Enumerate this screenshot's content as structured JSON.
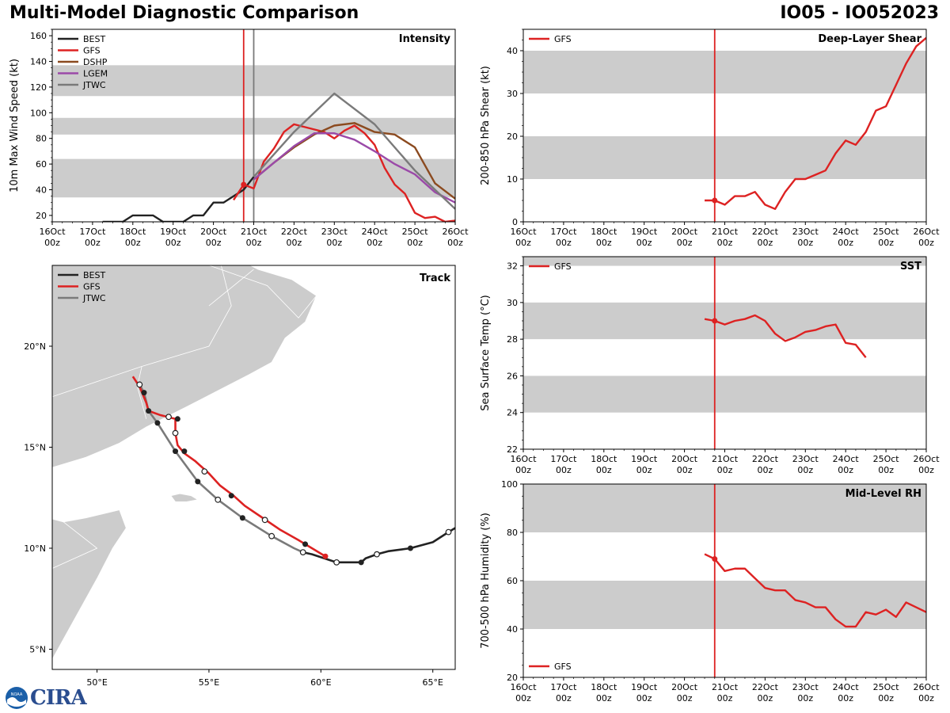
{
  "header": {
    "title": "Multi-Model Diagnostic Comparison",
    "storm_id": "IO05 - IO052023"
  },
  "logo": {
    "text": "CIRA",
    "mark_label": "NOAA"
  },
  "colors": {
    "BEST": "#222222",
    "GFS": "#dd2222",
    "DSHP": "#8b4a1f",
    "LGEM": "#9b4aa8",
    "JTWC": "#7a7a7a",
    "band": "#cccccc",
    "land": "#cccccc"
  },
  "time_axis": {
    "ticks": [
      {
        "day": 0,
        "label": "16Oct"
      },
      {
        "day": 1,
        "label": "17Oct"
      },
      {
        "day": 2,
        "label": "18Oct"
      },
      {
        "day": 3,
        "label": "19Oct"
      },
      {
        "day": 4,
        "label": "20Oct"
      },
      {
        "day": 5,
        "label": "21Oct"
      },
      {
        "day": 6,
        "label": "22Oct"
      },
      {
        "day": 7,
        "label": "23Oct"
      },
      {
        "day": 8,
        "label": "24Oct"
      },
      {
        "day": 9,
        "label": "25Oct"
      },
      {
        "day": 10,
        "label": "26Oct"
      }
    ],
    "sub_label": "00z",
    "range": [
      0,
      10
    ],
    "current_day": 4.75
  },
  "chart_data": [
    {
      "id": "intensity",
      "type": "line",
      "title": "Intensity",
      "ylabel": "10m Max Wind Speed (kt)",
      "ylim": [
        15,
        165
      ],
      "yticks": [
        20,
        40,
        60,
        80,
        100,
        120,
        140,
        160
      ],
      "bands": [
        [
          34,
          64
        ],
        [
          83,
          96
        ],
        [
          113,
          137
        ]
      ],
      "jtwc_init_day": 5.0,
      "legend": [
        "BEST",
        "GFS",
        "DSHP",
        "LGEM",
        "JTWC"
      ],
      "series": [
        {
          "name": "BEST",
          "points": [
            [
              1.25,
              15
            ],
            [
              1.5,
              15
            ],
            [
              1.75,
              15
            ],
            [
              2.0,
              20
            ],
            [
              2.25,
              20
            ],
            [
              2.5,
              20
            ],
            [
              2.75,
              15
            ],
            [
              3.0,
              15
            ],
            [
              3.25,
              15
            ],
            [
              3.5,
              20
            ],
            [
              3.75,
              20
            ],
            [
              4.0,
              30
            ],
            [
              4.25,
              30
            ],
            [
              4.5,
              35
            ],
            [
              4.75,
              40
            ],
            [
              5.0,
              50
            ]
          ]
        },
        {
          "name": "GFS",
          "points": [
            [
              4.5,
              32
            ],
            [
              4.75,
              44
            ],
            [
              5.0,
              41
            ],
            [
              5.25,
              62
            ],
            [
              5.5,
              72
            ],
            [
              5.75,
              85
            ],
            [
              6.0,
              91
            ],
            [
              6.25,
              89
            ],
            [
              6.5,
              87
            ],
            [
              6.75,
              85
            ],
            [
              7.0,
              80
            ],
            [
              7.25,
              86
            ],
            [
              7.5,
              90
            ],
            [
              7.75,
              84
            ],
            [
              8.0,
              75
            ],
            [
              8.25,
              57
            ],
            [
              8.5,
              44
            ],
            [
              8.75,
              37
            ],
            [
              9.0,
              22
            ],
            [
              9.25,
              18
            ],
            [
              9.5,
              19
            ],
            [
              9.75,
              15
            ],
            [
              10.0,
              16
            ]
          ]
        },
        {
          "name": "DSHP",
          "points": [
            [
              5.0,
              48
            ],
            [
              5.5,
              61
            ],
            [
              6.0,
              73
            ],
            [
              6.5,
              83
            ],
            [
              7.0,
              90
            ],
            [
              7.5,
              92
            ],
            [
              8.0,
              85
            ],
            [
              8.5,
              83
            ],
            [
              9.0,
              73
            ],
            [
              9.5,
              45
            ],
            [
              10.0,
              33
            ]
          ]
        },
        {
          "name": "LGEM",
          "points": [
            [
              5.0,
              48
            ],
            [
              5.5,
              61
            ],
            [
              6.0,
              74
            ],
            [
              6.5,
              84
            ],
            [
              7.0,
              84
            ],
            [
              7.5,
              79
            ],
            [
              8.0,
              70
            ],
            [
              8.5,
              60
            ],
            [
              9.0,
              52
            ],
            [
              9.5,
              38
            ],
            [
              10.0,
              30
            ]
          ]
        },
        {
          "name": "JTWC",
          "points": [
            [
              5.0,
              50
            ],
            [
              6.0,
              85
            ],
            [
              7.0,
              115
            ],
            [
              8.0,
              91
            ],
            [
              9.0,
              55
            ],
            [
              10.0,
              25
            ]
          ]
        }
      ]
    },
    {
      "id": "shear",
      "type": "line",
      "title": "Deep-Layer Shear",
      "ylabel": "200-850 hPa Shear (kt)",
      "ylim": [
        0,
        45
      ],
      "yticks": [
        0,
        10,
        20,
        30,
        40
      ],
      "bands": [
        [
          10,
          20
        ],
        [
          30,
          40
        ]
      ],
      "legend": [
        "GFS"
      ],
      "series": [
        {
          "name": "GFS",
          "points": [
            [
              4.5,
              5
            ],
            [
              4.75,
              5
            ],
            [
              5.0,
              4
            ],
            [
              5.25,
              6
            ],
            [
              5.5,
              6
            ],
            [
              5.75,
              7
            ],
            [
              6.0,
              4
            ],
            [
              6.25,
              3
            ],
            [
              6.5,
              7
            ],
            [
              6.75,
              10
            ],
            [
              7.0,
              10
            ],
            [
              7.25,
              11
            ],
            [
              7.5,
              12
            ],
            [
              7.75,
              16
            ],
            [
              8.0,
              19
            ],
            [
              8.25,
              18
            ],
            [
              8.5,
              21
            ],
            [
              8.75,
              26
            ],
            [
              9.0,
              27
            ],
            [
              9.25,
              32
            ],
            [
              9.5,
              37
            ],
            [
              9.75,
              41
            ],
            [
              10.0,
              43
            ]
          ]
        }
      ]
    },
    {
      "id": "sst",
      "type": "line",
      "title": "SST",
      "ylabel": "Sea Surface Temp (°C)",
      "ylim": [
        22,
        32.5
      ],
      "yticks": [
        22,
        24,
        26,
        28,
        30,
        32
      ],
      "bands": [
        [
          24,
          26
        ],
        [
          28,
          30
        ],
        [
          32,
          34
        ]
      ],
      "legend": [
        "GFS"
      ],
      "series": [
        {
          "name": "GFS",
          "points": [
            [
              4.5,
              29.1
            ],
            [
              4.75,
              29.0
            ],
            [
              5.0,
              28.8
            ],
            [
              5.25,
              29.0
            ],
            [
              5.5,
              29.1
            ],
            [
              5.75,
              29.3
            ],
            [
              6.0,
              29.0
            ],
            [
              6.25,
              28.3
            ],
            [
              6.5,
              27.9
            ],
            [
              6.75,
              28.1
            ],
            [
              7.0,
              28.4
            ],
            [
              7.25,
              28.5
            ],
            [
              7.5,
              28.7
            ],
            [
              7.75,
              28.8
            ],
            [
              8.0,
              27.8
            ],
            [
              8.25,
              27.7
            ],
            [
              8.5,
              27.0
            ]
          ]
        }
      ]
    },
    {
      "id": "rh",
      "type": "line",
      "title": "Mid-Level RH",
      "ylabel": "700-500 hPa Humidity (%)",
      "ylim": [
        20,
        100
      ],
      "yticks": [
        20,
        40,
        60,
        80,
        100
      ],
      "bands": [
        [
          40,
          60
        ],
        [
          80,
          100
        ]
      ],
      "legend": [
        "GFS"
      ],
      "series": [
        {
          "name": "GFS",
          "points": [
            [
              4.5,
              71
            ],
            [
              4.75,
              69
            ],
            [
              5.0,
              64
            ],
            [
              5.25,
              65
            ],
            [
              5.5,
              65
            ],
            [
              5.75,
              61
            ],
            [
              6.0,
              57
            ],
            [
              6.25,
              56
            ],
            [
              6.5,
              56
            ],
            [
              6.75,
              52
            ],
            [
              7.0,
              51
            ],
            [
              7.25,
              49
            ],
            [
              7.5,
              49
            ],
            [
              7.75,
              44
            ],
            [
              8.0,
              41
            ],
            [
              8.25,
              41
            ],
            [
              8.5,
              47
            ],
            [
              8.75,
              46
            ],
            [
              9.0,
              48
            ],
            [
              9.25,
              45
            ],
            [
              9.5,
              51
            ],
            [
              9.75,
              49
            ],
            [
              10.0,
              47
            ]
          ]
        }
      ]
    },
    {
      "id": "track",
      "type": "map-track",
      "title": "Track",
      "lon_range": [
        48.0,
        66.0
      ],
      "lat_range": [
        4.0,
        24.0
      ],
      "lon_ticks": [
        {
          "v": 50,
          "label": "50°E"
        },
        {
          "v": 55,
          "label": "55°E"
        },
        {
          "v": 60,
          "label": "60°E"
        },
        {
          "v": 65,
          "label": "65°E"
        }
      ],
      "lat_ticks": [
        {
          "v": 5,
          "label": "5°N"
        },
        {
          "v": 10,
          "label": "10°N"
        },
        {
          "v": 15,
          "label": "15°N"
        },
        {
          "v": 20,
          "label": "20°N"
        }
      ],
      "legend": [
        "BEST",
        "GFS",
        "JTWC"
      ],
      "series": [
        {
          "name": "BEST",
          "points": [
            [
              66.0,
              11.0
            ],
            [
              65.7,
              10.8
            ],
            [
              65.0,
              10.3
            ],
            [
              64.0,
              10.0
            ],
            [
              63.0,
              9.85
            ],
            [
              62.5,
              9.7
            ],
            [
              62.0,
              9.5
            ],
            [
              61.8,
              9.3
            ],
            [
              61.3,
              9.3
            ],
            [
              60.7,
              9.3
            ],
            [
              59.6,
              9.7
            ],
            [
              59.2,
              9.8
            ]
          ],
          "open_pts": [
            [
              65.7,
              10.8
            ],
            [
              62.5,
              9.7
            ],
            [
              60.7,
              9.3
            ]
          ],
          "filled_pts": [
            [
              64.0,
              10.0
            ],
            [
              61.8,
              9.3
            ]
          ]
        },
        {
          "name": "GFS",
          "points": [
            [
              51.6,
              18.5
            ],
            [
              51.9,
              18.0
            ],
            [
              52.2,
              17.2
            ],
            [
              52.3,
              16.8
            ],
            [
              52.8,
              16.6
            ],
            [
              53.5,
              16.4
            ],
            [
              53.5,
              15.7
            ],
            [
              53.6,
              15.1
            ],
            [
              53.9,
              14.7
            ],
            [
              54.4,
              14.3
            ],
            [
              55.0,
              13.7
            ],
            [
              55.5,
              13.1
            ],
            [
              56.1,
              12.6
            ],
            [
              56.6,
              12.1
            ],
            [
              57.4,
              11.5
            ],
            [
              58.2,
              10.9
            ],
            [
              59.0,
              10.4
            ],
            [
              59.6,
              10.0
            ],
            [
              60.2,
              9.6
            ]
          ],
          "open_pts": [],
          "filled_pts": [
            [
              60.2,
              9.6
            ]
          ]
        },
        {
          "name": "JTWC",
          "points": [
            [
              59.2,
              9.8
            ],
            [
              58.8,
              10.0
            ],
            [
              57.8,
              10.6
            ],
            [
              56.5,
              11.5
            ],
            [
              55.4,
              12.4
            ],
            [
              54.5,
              13.3
            ],
            [
              53.5,
              14.8
            ],
            [
              52.7,
              16.2
            ],
            [
              52.3,
              16.8
            ],
            [
              52.1,
              17.7
            ],
            [
              51.9,
              18.1
            ]
          ],
          "open_pts": [
            [
              57.8,
              10.6
            ],
            [
              55.4,
              12.4
            ],
            [
              51.9,
              18.1
            ]
          ],
          "filled_pts": [
            [
              56.5,
              11.5
            ],
            [
              54.5,
              13.3
            ],
            [
              53.5,
              14.8
            ],
            [
              52.7,
              16.2
            ],
            [
              52.3,
              16.8
            ],
            [
              52.1,
              17.7
            ],
            [
              59.2,
              9.8
            ]
          ]
        },
        {
          "name": "GFS-dots",
          "points": [],
          "open_pts": [
            [
              53.2,
              16.5
            ],
            [
              53.5,
              15.7
            ],
            [
              54.8,
              13.8
            ],
            [
              57.5,
              11.4
            ],
            [
              59.2,
              9.8
            ]
          ],
          "filled_pts": [
            [
              53.6,
              16.4
            ],
            [
              53.9,
              14.8
            ],
            [
              56.0,
              12.6
            ],
            [
              59.3,
              10.2
            ]
          ]
        }
      ]
    }
  ]
}
